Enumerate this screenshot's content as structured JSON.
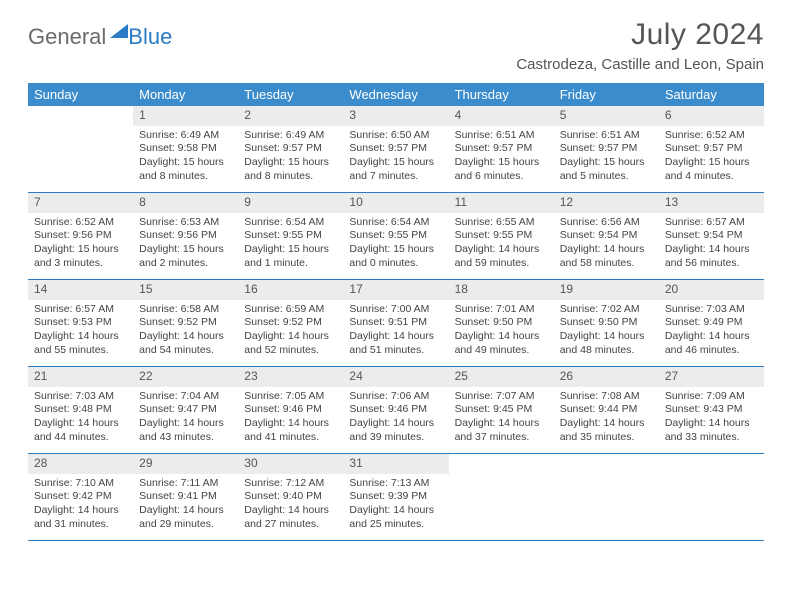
{
  "logo": {
    "part1": "General",
    "part2": "Blue"
  },
  "title": "July 2024",
  "location": "Castrodeza, Castille and Leon, Spain",
  "day_headers": [
    "Sunday",
    "Monday",
    "Tuesday",
    "Wednesday",
    "Thursday",
    "Friday",
    "Saturday"
  ],
  "colors": {
    "header_bg": "#3b8ccc",
    "header_text": "#ffffff",
    "accent": "#2b7cc4",
    "daynum_bg": "#ececec",
    "body_text": "#444444"
  },
  "weeks": [
    [
      {
        "empty": true
      },
      {
        "n": "1",
        "sunrise": "6:49 AM",
        "sunset": "9:58 PM",
        "daylight": "15 hours and 8 minutes."
      },
      {
        "n": "2",
        "sunrise": "6:49 AM",
        "sunset": "9:57 PM",
        "daylight": "15 hours and 8 minutes."
      },
      {
        "n": "3",
        "sunrise": "6:50 AM",
        "sunset": "9:57 PM",
        "daylight": "15 hours and 7 minutes."
      },
      {
        "n": "4",
        "sunrise": "6:51 AM",
        "sunset": "9:57 PM",
        "daylight": "15 hours and 6 minutes."
      },
      {
        "n": "5",
        "sunrise": "6:51 AM",
        "sunset": "9:57 PM",
        "daylight": "15 hours and 5 minutes."
      },
      {
        "n": "6",
        "sunrise": "6:52 AM",
        "sunset": "9:57 PM",
        "daylight": "15 hours and 4 minutes."
      }
    ],
    [
      {
        "n": "7",
        "sunrise": "6:52 AM",
        "sunset": "9:56 PM",
        "daylight": "15 hours and 3 minutes."
      },
      {
        "n": "8",
        "sunrise": "6:53 AM",
        "sunset": "9:56 PM",
        "daylight": "15 hours and 2 minutes."
      },
      {
        "n": "9",
        "sunrise": "6:54 AM",
        "sunset": "9:55 PM",
        "daylight": "15 hours and 1 minute."
      },
      {
        "n": "10",
        "sunrise": "6:54 AM",
        "sunset": "9:55 PM",
        "daylight": "15 hours and 0 minutes."
      },
      {
        "n": "11",
        "sunrise": "6:55 AM",
        "sunset": "9:55 PM",
        "daylight": "14 hours and 59 minutes."
      },
      {
        "n": "12",
        "sunrise": "6:56 AM",
        "sunset": "9:54 PM",
        "daylight": "14 hours and 58 minutes."
      },
      {
        "n": "13",
        "sunrise": "6:57 AM",
        "sunset": "9:54 PM",
        "daylight": "14 hours and 56 minutes."
      }
    ],
    [
      {
        "n": "14",
        "sunrise": "6:57 AM",
        "sunset": "9:53 PM",
        "daylight": "14 hours and 55 minutes."
      },
      {
        "n": "15",
        "sunrise": "6:58 AM",
        "sunset": "9:52 PM",
        "daylight": "14 hours and 54 minutes."
      },
      {
        "n": "16",
        "sunrise": "6:59 AM",
        "sunset": "9:52 PM",
        "daylight": "14 hours and 52 minutes."
      },
      {
        "n": "17",
        "sunrise": "7:00 AM",
        "sunset": "9:51 PM",
        "daylight": "14 hours and 51 minutes."
      },
      {
        "n": "18",
        "sunrise": "7:01 AM",
        "sunset": "9:50 PM",
        "daylight": "14 hours and 49 minutes."
      },
      {
        "n": "19",
        "sunrise": "7:02 AM",
        "sunset": "9:50 PM",
        "daylight": "14 hours and 48 minutes."
      },
      {
        "n": "20",
        "sunrise": "7:03 AM",
        "sunset": "9:49 PM",
        "daylight": "14 hours and 46 minutes."
      }
    ],
    [
      {
        "n": "21",
        "sunrise": "7:03 AM",
        "sunset": "9:48 PM",
        "daylight": "14 hours and 44 minutes."
      },
      {
        "n": "22",
        "sunrise": "7:04 AM",
        "sunset": "9:47 PM",
        "daylight": "14 hours and 43 minutes."
      },
      {
        "n": "23",
        "sunrise": "7:05 AM",
        "sunset": "9:46 PM",
        "daylight": "14 hours and 41 minutes."
      },
      {
        "n": "24",
        "sunrise": "7:06 AM",
        "sunset": "9:46 PM",
        "daylight": "14 hours and 39 minutes."
      },
      {
        "n": "25",
        "sunrise": "7:07 AM",
        "sunset": "9:45 PM",
        "daylight": "14 hours and 37 minutes."
      },
      {
        "n": "26",
        "sunrise": "7:08 AM",
        "sunset": "9:44 PM",
        "daylight": "14 hours and 35 minutes."
      },
      {
        "n": "27",
        "sunrise": "7:09 AM",
        "sunset": "9:43 PM",
        "daylight": "14 hours and 33 minutes."
      }
    ],
    [
      {
        "n": "28",
        "sunrise": "7:10 AM",
        "sunset": "9:42 PM",
        "daylight": "14 hours and 31 minutes."
      },
      {
        "n": "29",
        "sunrise": "7:11 AM",
        "sunset": "9:41 PM",
        "daylight": "14 hours and 29 minutes."
      },
      {
        "n": "30",
        "sunrise": "7:12 AM",
        "sunset": "9:40 PM",
        "daylight": "14 hours and 27 minutes."
      },
      {
        "n": "31",
        "sunrise": "7:13 AM",
        "sunset": "9:39 PM",
        "daylight": "14 hours and 25 minutes."
      },
      {
        "empty": true
      },
      {
        "empty": true
      },
      {
        "empty": true
      }
    ]
  ],
  "labels": {
    "sunrise": "Sunrise:",
    "sunset": "Sunset:",
    "daylight": "Daylight:"
  }
}
